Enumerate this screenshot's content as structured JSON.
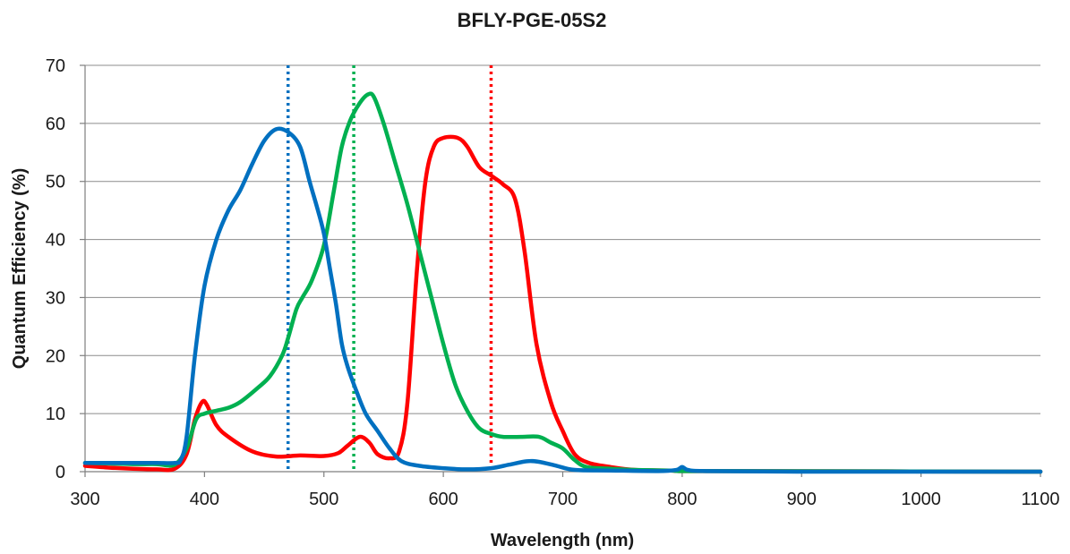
{
  "chart_data": {
    "type": "line",
    "title": "BFLY-PGE-05S2",
    "xlabel": "Wavelength (nm)",
    "ylabel": "Quantum Efficiency (%)",
    "xlim": [
      300,
      1100
    ],
    "ylim": [
      0,
      70
    ],
    "xticks": [
      300,
      400,
      500,
      600,
      700,
      800,
      900,
      1000,
      1100
    ],
    "yticks": [
      0,
      10,
      20,
      30,
      40,
      50,
      60,
      70
    ],
    "grid": "horizontal",
    "legend": "none",
    "series": [
      {
        "color": "#ff0000",
        "points": [
          [
            300,
            1.0
          ],
          [
            320,
            0.7
          ],
          [
            340,
            0.5
          ],
          [
            360,
            0.4
          ],
          [
            375,
            0.5
          ],
          [
            385,
            3
          ],
          [
            392,
            9
          ],
          [
            398,
            12
          ],
          [
            402,
            11.5
          ],
          [
            410,
            8
          ],
          [
            420,
            6
          ],
          [
            440,
            3.5
          ],
          [
            460,
            2.6
          ],
          [
            480,
            2.8
          ],
          [
            500,
            2.7
          ],
          [
            512,
            3.2
          ],
          [
            520,
            4.5
          ],
          [
            530,
            6
          ],
          [
            538,
            5
          ],
          [
            545,
            3
          ],
          [
            555,
            2.3
          ],
          [
            563,
            3.5
          ],
          [
            570,
            12
          ],
          [
            578,
            35
          ],
          [
            585,
            50
          ],
          [
            592,
            56
          ],
          [
            600,
            57.5
          ],
          [
            612,
            57.5
          ],
          [
            620,
            56
          ],
          [
            630,
            52.5
          ],
          [
            640,
            51
          ],
          [
            650,
            49.5
          ],
          [
            660,
            47
          ],
          [
            668,
            38
          ],
          [
            678,
            22
          ],
          [
            690,
            12
          ],
          [
            700,
            7
          ],
          [
            710,
            3
          ],
          [
            722,
            1.5
          ],
          [
            740,
            0.8
          ],
          [
            760,
            0.3
          ],
          [
            790,
            0.2
          ],
          [
            800,
            0.1
          ],
          [
            850,
            0.1
          ],
          [
            1100,
            0
          ]
        ]
      },
      {
        "color": "#00b050",
        "points": [
          [
            300,
            1.5
          ],
          [
            320,
            1.4
          ],
          [
            340,
            1.3
          ],
          [
            360,
            1.3
          ],
          [
            375,
            1.2
          ],
          [
            385,
            4
          ],
          [
            393,
            9
          ],
          [
            400,
            10
          ],
          [
            410,
            10.5
          ],
          [
            420,
            11
          ],
          [
            430,
            12
          ],
          [
            445,
            14.5
          ],
          [
            455,
            16.5
          ],
          [
            465,
            20
          ],
          [
            470,
            23
          ],
          [
            477,
            28
          ],
          [
            482,
            30
          ],
          [
            490,
            33
          ],
          [
            500,
            39
          ],
          [
            508,
            48
          ],
          [
            515,
            56
          ],
          [
            522,
            60.5
          ],
          [
            530,
            63.5
          ],
          [
            537,
            65
          ],
          [
            542,
            64.5
          ],
          [
            550,
            60
          ],
          [
            560,
            53
          ],
          [
            570,
            46
          ],
          [
            580,
            38
          ],
          [
            590,
            30
          ],
          [
            600,
            22
          ],
          [
            610,
            15
          ],
          [
            620,
            10.5
          ],
          [
            630,
            7.5
          ],
          [
            640,
            6.5
          ],
          [
            650,
            6
          ],
          [
            665,
            6
          ],
          [
            680,
            6
          ],
          [
            690,
            5
          ],
          [
            700,
            4
          ],
          [
            710,
            2
          ],
          [
            720,
            0.8
          ],
          [
            740,
            0.5
          ],
          [
            760,
            0.3
          ],
          [
            790,
            0.2
          ],
          [
            800,
            0.1
          ],
          [
            850,
            0.1
          ],
          [
            1100,
            0
          ]
        ]
      },
      {
        "color": "#0070c0",
        "points": [
          [
            300,
            1.5
          ],
          [
            320,
            1.5
          ],
          [
            340,
            1.5
          ],
          [
            360,
            1.5
          ],
          [
            375,
            1.5
          ],
          [
            380,
            2
          ],
          [
            385,
            6
          ],
          [
            392,
            20
          ],
          [
            400,
            32
          ],
          [
            410,
            40
          ],
          [
            420,
            45
          ],
          [
            430,
            48.5
          ],
          [
            440,
            53
          ],
          [
            450,
            57
          ],
          [
            460,
            59
          ],
          [
            470,
            58.5
          ],
          [
            480,
            56
          ],
          [
            488,
            50
          ],
          [
            495,
            45
          ],
          [
            500,
            41
          ],
          [
            505,
            35
          ],
          [
            510,
            29
          ],
          [
            515,
            22
          ],
          [
            520,
            18
          ],
          [
            527,
            14
          ],
          [
            535,
            10
          ],
          [
            545,
            7
          ],
          [
            555,
            4
          ],
          [
            565,
            1.8
          ],
          [
            580,
            1
          ],
          [
            600,
            0.6
          ],
          [
            620,
            0.4
          ],
          [
            640,
            0.6
          ],
          [
            655,
            1.2
          ],
          [
            670,
            1.8
          ],
          [
            680,
            1.7
          ],
          [
            695,
            1
          ],
          [
            710,
            0.3
          ],
          [
            740,
            0.2
          ],
          [
            780,
            0.1
          ],
          [
            795,
            0.3
          ],
          [
            800,
            0.8
          ],
          [
            805,
            0.3
          ],
          [
            820,
            0.1
          ],
          [
            900,
            0
          ],
          [
            1000,
            0
          ],
          [
            1100,
            0
          ]
        ]
      }
    ],
    "reference_lines": [
      {
        "x": 470,
        "color": "#0070c0",
        "style": "dotted"
      },
      {
        "x": 525,
        "color": "#00b050",
        "style": "dotted"
      },
      {
        "x": 640,
        "color": "#ff0000",
        "style": "dotted"
      }
    ]
  }
}
